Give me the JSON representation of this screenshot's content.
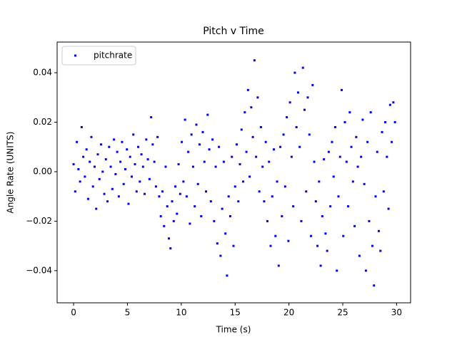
{
  "chart_data": {
    "type": "scatter",
    "title": "Pitch v Time",
    "xlabel": "Time (s)",
    "ylabel": "Angle Rate (UNITS)",
    "legend": "upper left",
    "xlim": [
      -1.53,
      31.3
    ],
    "ylim": [
      -0.053,
      0.0524
    ],
    "xticks": [
      0,
      5,
      10,
      15,
      20,
      25,
      30
    ],
    "yticks": [
      {
        "value": -0.04,
        "label": "−0.04"
      },
      {
        "value": -0.02,
        "label": "−0.02"
      },
      {
        "value": 0,
        "label": "0.00"
      },
      0.02,
      0.04
    ],
    "series": [
      {
        "name": "pitchrate",
        "color": "#0000ff",
        "x": [
          0,
          0.15,
          0.3,
          0.45,
          0.6,
          0.75,
          0.9,
          1.05,
          1.2,
          1.35,
          1.5,
          1.65,
          1.8,
          1.95,
          2.1,
          2.25,
          2.4,
          2.55,
          2.7,
          2.85,
          3,
          3.15,
          3.3,
          3.45,
          3.6,
          3.75,
          3.9,
          4.05,
          4.2,
          4.35,
          4.5,
          4.65,
          4.8,
          4.95,
          5.1,
          5.25,
          5.4,
          5.55,
          5.7,
          5.85,
          6,
          6.15,
          6.3,
          6.45,
          6.6,
          6.75,
          6.9,
          7.05,
          7.2,
          7.35,
          7.5,
          7.65,
          7.8,
          7.95,
          8.1,
          8.25,
          8.4,
          8.55,
          8.7,
          8.85,
          9,
          9.15,
          9.3,
          9.45,
          9.6,
          9.75,
          9.9,
          10.05,
          10.2,
          10.35,
          10.5,
          10.65,
          10.8,
          10.95,
          11.1,
          11.25,
          11.4,
          11.55,
          11.7,
          11.85,
          12,
          12.15,
          12.3,
          12.45,
          12.6,
          12.75,
          12.9,
          13.05,
          13.2,
          13.35,
          13.5,
          13.65,
          13.8,
          13.95,
          14.1,
          14.25,
          14.4,
          14.55,
          14.7,
          14.85,
          15,
          15.15,
          15.3,
          15.45,
          15.6,
          15.75,
          15.9,
          16.05,
          16.2,
          16.35,
          16.5,
          16.65,
          16.8,
          16.95,
          17.1,
          17.25,
          17.4,
          17.55,
          17.7,
          17.85,
          18,
          18.15,
          18.3,
          18.45,
          18.6,
          18.75,
          18.9,
          19.05,
          19.2,
          19.35,
          19.5,
          19.65,
          19.8,
          19.95,
          20.1,
          20.25,
          20.4,
          20.55,
          20.7,
          20.85,
          21,
          21.15,
          21.3,
          21.45,
          21.6,
          21.75,
          21.9,
          22.05,
          22.2,
          22.35,
          22.5,
          22.65,
          22.8,
          22.95,
          23.1,
          23.25,
          23.4,
          23.55,
          23.7,
          23.85,
          24,
          24.15,
          24.3,
          24.45,
          24.6,
          24.75,
          24.9,
          25.05,
          25.2,
          25.35,
          25.5,
          25.65,
          25.8,
          25.95,
          26.1,
          26.25,
          26.4,
          26.55,
          26.7,
          26.85,
          27,
          27.15,
          27.3,
          27.45,
          27.6,
          27.75,
          27.9,
          28.05,
          28.2,
          28.35,
          28.5,
          28.65,
          28.8,
          28.95,
          29.1,
          29.25,
          29.4,
          29.55,
          29.7,
          29.85
        ],
        "values": [
          0.003,
          -0.008,
          0.012,
          0.001,
          -0.004,
          0.018,
          0.006,
          -0.002,
          0.009,
          -0.011,
          0.004,
          0.014,
          -0.006,
          0.002,
          -0.015,
          0.007,
          -0.003,
          0.011,
          0.0,
          -0.009,
          0.005,
          -0.012,
          0.01,
          0.002,
          -0.007,
          0.013,
          -0.001,
          0.008,
          -0.01,
          0.004,
          0.012,
          -0.005,
          0.001,
          0.009,
          -0.013,
          0.006,
          -0.002,
          0.015,
          0.003,
          -0.008,
          0.01,
          -0.004,
          0.007,
          0.002,
          -0.009,
          0.013,
          0.005,
          -0.003,
          0.022,
          0.011,
          0.004,
          -0.006,
          0.014,
          -0.01,
          -0.018,
          -0.008,
          -0.022,
          0.002,
          -0.014,
          -0.027,
          -0.031,
          -0.012,
          -0.02,
          -0.006,
          -0.017,
          0.003,
          -0.009,
          0.012,
          -0.004,
          0.021,
          -0.01,
          0.008,
          -0.021,
          0.015,
          0.002,
          -0.014,
          0.019,
          -0.005,
          0.011,
          -0.018,
          0.016,
          0.004,
          -0.008,
          0.023,
          0.009,
          -0.012,
          0.013,
          -0.02,
          0.002,
          -0.029,
          0.01,
          -0.034,
          -0.015,
          0.004,
          -0.025,
          -0.042,
          -0.01,
          -0.018,
          0.006,
          -0.03,
          -0.006,
          0.011,
          -0.012,
          0.003,
          0.017,
          -0.004,
          0.024,
          0.008,
          0.033,
          -0.002,
          0.026,
          0.014,
          0.045,
          0.006,
          0.03,
          -0.008,
          0.018,
          0.002,
          -0.012,
          0.012,
          -0.02,
          0.004,
          -0.03,
          -0.01,
          0.009,
          -0.026,
          -0.004,
          -0.038,
          0.01,
          -0.018,
          0.015,
          -0.006,
          0.022,
          -0.028,
          0.028,
          0.006,
          -0.014,
          0.04,
          0.018,
          0.032,
          0.01,
          -0.02,
          0.042,
          0.025,
          -0.008,
          0.03,
          0.015,
          -0.026,
          0.035,
          0.004,
          -0.012,
          -0.03,
          -0.004,
          -0.038,
          -0.018,
          0.005,
          -0.025,
          -0.032,
          0.008,
          -0.014,
          0.012,
          -0.002,
          0.018,
          -0.04,
          -0.01,
          0.006,
          0.033,
          -0.026,
          0.02,
          0.004,
          -0.014,
          0.024,
          0.01,
          -0.004,
          -0.022,
          0.014,
          0.002,
          -0.034,
          0.006,
          0.021,
          -0.005,
          -0.04,
          0.012,
          -0.02,
          0.024,
          -0.03,
          -0.046,
          -0.01,
          0.008,
          -0.024,
          -0.032,
          0.016,
          -0.008,
          0.02,
          0.006,
          -0.015,
          0.027,
          0.012,
          0.028,
          0.02
        ]
      }
    ]
  }
}
